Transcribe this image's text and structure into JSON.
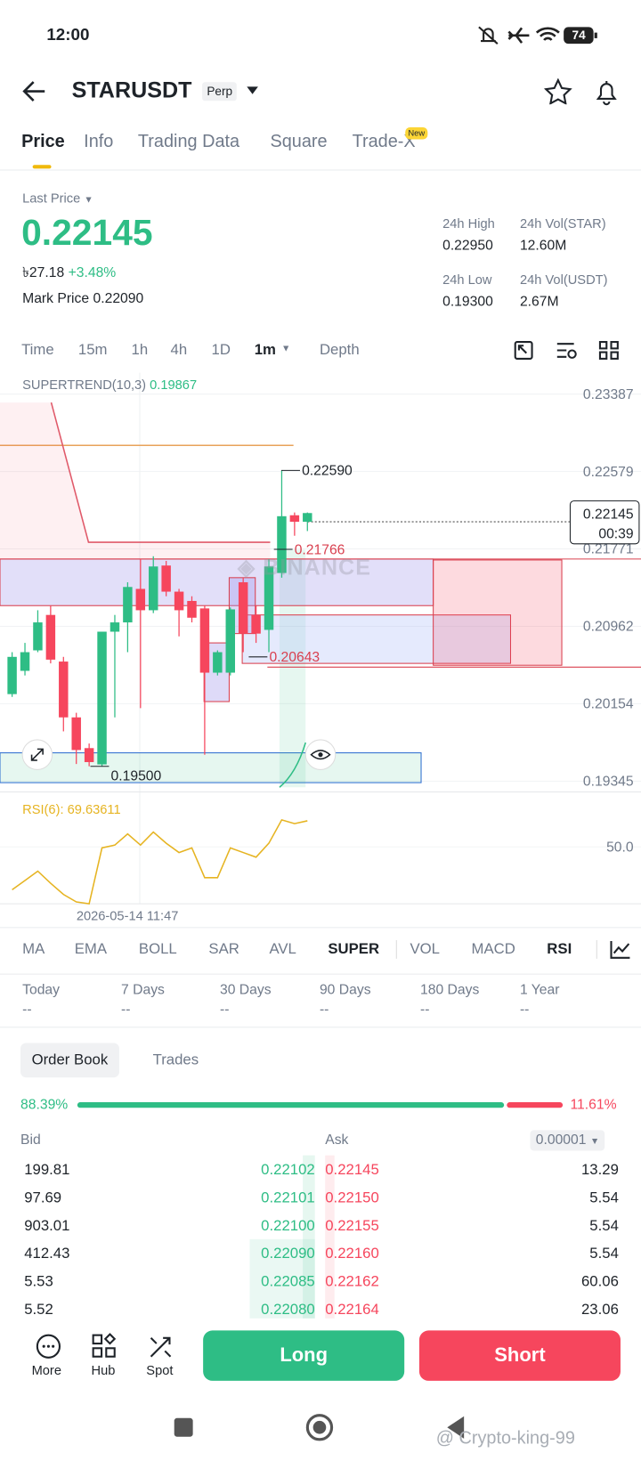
{
  "status_bar": {
    "time": "12:00",
    "battery": "74"
  },
  "header": {
    "symbol": "STARUSDT",
    "badge": "Perp"
  },
  "tabs": [
    "Price",
    "Info",
    "Trading Data",
    "Square",
    "Trade-X"
  ],
  "tab_badge": "New",
  "ticker": {
    "last_price_label": "Last Price",
    "last_price": "0.22145",
    "fiat": "৳27.18",
    "change": "+3.48%",
    "mark_price_label": "Mark Price",
    "mark_price": "0.22090",
    "stats": [
      {
        "label": "24h High",
        "value": "0.22950"
      },
      {
        "label": "24h Vol(STAR)",
        "value": "12.60M"
      },
      {
        "label": "24h Low",
        "value": "0.19300"
      },
      {
        "label": "24h Vol(USDT)",
        "value": "2.67M"
      }
    ]
  },
  "intervals": [
    "Time",
    "15m",
    "1h",
    "4h",
    "1D",
    "1m",
    "Depth"
  ],
  "chart_data": [
    {
      "type": "candlestick",
      "indicator": "SUPERTREND(10,3)",
      "indicator_value": 0.19867,
      "watermark": "BINANCE",
      "up_color": "#2ebd85",
      "down_color": "#f6465d",
      "series": [
        {
          "open": [
            0.20254,
            0.20497,
            0.20711,
            0.21081,
            0.20594,
            0.20011,
            0.1969,
            0.1952,
            0.20906,
            0.21003,
            0.21353,
            0.2113,
            0.21597,
            0.21324,
            0.21227,
            0.21149,
            0.20478,
            0.20478,
            0.21422,
            0.21081,
            0.20925,
            0.21519,
            0.22122,
            0.22054
          ],
          "high": [
            0.20692,
            0.20789,
            0.2113,
            0.21178,
            0.20643,
            0.20059,
            0.19738,
            0.20906,
            0.21081,
            0.21422,
            0.21665,
            0.21694,
            0.21645,
            0.21353,
            0.21276,
            0.21178,
            0.20711,
            0.21159,
            0.2147,
            0.21178,
            0.21665,
            0.2259,
            0.22151,
            0.22151
          ],
          "low": [
            0.20225,
            0.20449,
            0.20692,
            0.20575,
            0.19865,
            0.19524,
            0.195,
            0.195,
            0.20011,
            0.20692,
            0.20108,
            0.211,
            0.21276,
            0.20857,
            0.21003,
            0.19621,
            0.20449,
            0.20449,
            0.20692,
            0.20789,
            0.20692,
            0.2147,
            0.21908,
            0.21957
          ],
          "close": [
            0.20643,
            0.20692,
            0.21003,
            0.20614,
            0.20011,
            0.1967,
            0.19544,
            0.20906,
            0.21003,
            0.21373,
            0.2113,
            0.21587,
            0.21324,
            0.2113,
            0.21052,
            0.20478,
            0.20692,
            0.21139,
            0.20886,
            0.20886,
            0.21587,
            0.22112,
            0.22054,
            0.22145
          ]
        }
      ],
      "ylim": [
        0.19232,
        0.23611
      ],
      "yticks": [
        0.23387,
        0.22579,
        0.21771,
        0.20962,
        0.20154,
        0.19345
      ],
      "annotations": [
        {
          "value": 0.2259,
          "label": "0.22590"
        },
        {
          "value": 0.21766,
          "label": "0.21766"
        },
        {
          "value": 0.20643,
          "label": "0.20643"
        },
        {
          "value": 0.195,
          "label": "0.19500"
        }
      ],
      "last_price": {
        "value": 0.22145,
        "label": "0.22145"
      },
      "countdown": "00:39",
      "x_label": "2026-05-14 11:47",
      "grid": true
    },
    {
      "type": "line",
      "indicator": "RSI(6):",
      "series": [
        {
          "color": "#e6b422",
          "values": [
            17.8,
            24.8,
            31.8,
            22.7,
            14.3,
            8.7,
            7.3,
            49.3,
            51.4,
            59.8,
            51.4,
            61.2,
            52.8,
            45.8,
            49.3,
            26.9,
            26.9,
            49.3,
            45.8,
            42.3,
            52.8,
            70.3,
            67.5,
            69.63611
          ]
        }
      ],
      "ylim": [
        3.8,
        77.3
      ],
      "yticks": [
        {
          "value": 50,
          "label": "50.0"
        }
      ]
    }
  ],
  "indicator_tabs": [
    "MA",
    "EMA",
    "BOLL",
    "SAR",
    "AVL",
    "SUPER",
    "VOL",
    "MACD",
    "RSI"
  ],
  "periods": [
    {
      "label": "Today",
      "value": "--"
    },
    {
      "label": "7 Days",
      "value": "--"
    },
    {
      "label": "30 Days",
      "value": "--"
    },
    {
      "label": "90 Days",
      "value": "--"
    },
    {
      "label": "180 Days",
      "value": "--"
    },
    {
      "label": "1 Year",
      "value": "--"
    }
  ],
  "order_book": {
    "tabs": [
      "Order Book",
      "Trades"
    ],
    "ratio": {
      "values": [
        88.39,
        11.61
      ],
      "value_labels": [
        "88.39%",
        "11.61%"
      ],
      "colors": [
        "#2ebd85",
        "#f6465d"
      ]
    },
    "bid_header": "Bid",
    "ask_header": "Ask",
    "precision": "0.00001",
    "rows": [
      {
        "bid_amount": "199.81",
        "bid_price": "0.22102",
        "ask_price": "0.22145",
        "ask_amount": "13.29"
      },
      {
        "bid_amount": "97.69",
        "bid_price": "0.22101",
        "ask_price": "0.22150",
        "ask_amount": "5.54"
      },
      {
        "bid_amount": "903.01",
        "bid_price": "0.22100",
        "ask_price": "0.22155",
        "ask_amount": "5.54"
      },
      {
        "bid_amount": "412.43",
        "bid_price": "0.22090",
        "ask_price": "0.22160",
        "ask_amount": "5.54"
      },
      {
        "bid_amount": "5.53",
        "bid_price": "0.22085",
        "ask_price": "0.22162",
        "ask_amount": "60.06"
      },
      {
        "bid_amount": "5.52",
        "bid_price": "0.22080",
        "ask_price": "0.22164",
        "ask_amount": "23.06"
      }
    ]
  },
  "bottom_bar": {
    "items": [
      "More",
      "Hub",
      "Spot"
    ],
    "long": "Long",
    "short": "Short"
  },
  "watermark": "@ Crypto-king-99"
}
